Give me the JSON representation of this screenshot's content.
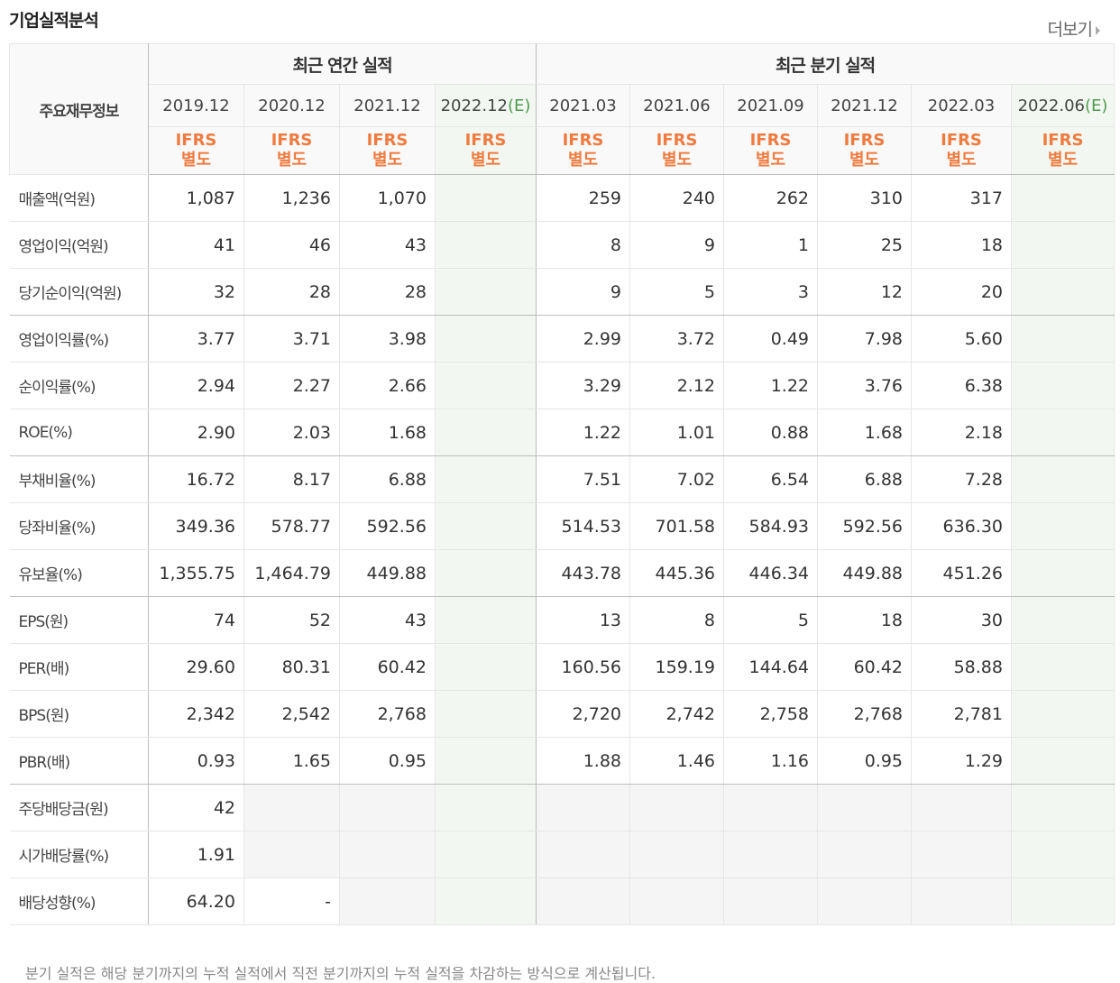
{
  "title": "기업실적분석",
  "more_label": "더보기",
  "row_header_label": "주요재무정보",
  "groups": {
    "annual": "최근 연간 실적",
    "quarter": "최근 분기 실적"
  },
  "annual_periods": [
    {
      "date": "2019.12",
      "est": ""
    },
    {
      "date": "2020.12",
      "est": ""
    },
    {
      "date": "2021.12",
      "est": ""
    },
    {
      "date": "2022.12",
      "est": "(E)"
    }
  ],
  "quarter_periods": [
    {
      "date": "2021.03",
      "est": ""
    },
    {
      "date": "2021.06",
      "est": ""
    },
    {
      "date": "2021.09",
      "est": ""
    },
    {
      "date": "2021.12",
      "est": ""
    },
    {
      "date": "2022.03",
      "est": ""
    },
    {
      "date": "2022.06",
      "est": "(E)"
    }
  ],
  "ifrs_line1": "IFRS",
  "ifrs_line2": "별도",
  "rows": [
    {
      "label": "매출액(억원)",
      "values": [
        "1,087",
        "1,236",
        "1,070",
        "",
        "259",
        "240",
        "262",
        "310",
        "317",
        ""
      ]
    },
    {
      "label": "영업이익(억원)",
      "values": [
        "41",
        "46",
        "43",
        "",
        "8",
        "9",
        "1",
        "25",
        "18",
        ""
      ]
    },
    {
      "label": "당기순이익(억원)",
      "values": [
        "32",
        "28",
        "28",
        "",
        "9",
        "5",
        "3",
        "12",
        "20",
        ""
      ]
    },
    {
      "label": "영업이익률(%)",
      "values": [
        "3.77",
        "3.71",
        "3.98",
        "",
        "2.99",
        "3.72",
        "0.49",
        "7.98",
        "5.60",
        ""
      ]
    },
    {
      "label": "순이익률(%)",
      "values": [
        "2.94",
        "2.27",
        "2.66",
        "",
        "3.29",
        "2.12",
        "1.22",
        "3.76",
        "6.38",
        ""
      ]
    },
    {
      "label": "ROE(%)",
      "values": [
        "2.90",
        "2.03",
        "1.68",
        "",
        "1.22",
        "1.01",
        "0.88",
        "1.68",
        "2.18",
        ""
      ]
    },
    {
      "label": "부채비율(%)",
      "values": [
        "16.72",
        "8.17",
        "6.88",
        "",
        "7.51",
        "7.02",
        "6.54",
        "6.88",
        "7.28",
        ""
      ]
    },
    {
      "label": "당좌비율(%)",
      "values": [
        "349.36",
        "578.77",
        "592.56",
        "",
        "514.53",
        "701.58",
        "584.93",
        "592.56",
        "636.30",
        ""
      ]
    },
    {
      "label": "유보율(%)",
      "values": [
        "1,355.75",
        "1,464.79",
        "449.88",
        "",
        "443.78",
        "445.36",
        "446.34",
        "449.88",
        "451.26",
        ""
      ]
    },
    {
      "label": "EPS(원)",
      "values": [
        "74",
        "52",
        "43",
        "",
        "13",
        "8",
        "5",
        "18",
        "30",
        ""
      ]
    },
    {
      "label": "PER(배)",
      "values": [
        "29.60",
        "80.31",
        "60.42",
        "",
        "160.56",
        "159.19",
        "144.64",
        "60.42",
        "58.88",
        ""
      ]
    },
    {
      "label": "BPS(원)",
      "values": [
        "2,342",
        "2,542",
        "2,768",
        "",
        "2,720",
        "2,742",
        "2,758",
        "2,768",
        "2,781",
        ""
      ]
    },
    {
      "label": "PBR(배)",
      "values": [
        "0.93",
        "1.65",
        "0.95",
        "",
        "1.88",
        "1.46",
        "1.16",
        "0.95",
        "1.29",
        ""
      ]
    },
    {
      "label": "주당배당금(원)",
      "values": [
        "42",
        "",
        "",
        "",
        "",
        "",
        "",
        "",
        "",
        ""
      ]
    },
    {
      "label": "시가배당률(%)",
      "values": [
        "1.91",
        "",
        "",
        "",
        "",
        "",
        "",
        "",
        "",
        ""
      ]
    },
    {
      "label": "배당성향(%)",
      "values": [
        "64.20",
        "-",
        "",
        "",
        "",
        "",
        "",
        "",
        "",
        ""
      ]
    }
  ],
  "footnote": "분기 실적은 해당 분기까지의 누적 실적에서 직전 분기까지의 누적 실적을 차감하는 방식으로 계산됩니다."
}
